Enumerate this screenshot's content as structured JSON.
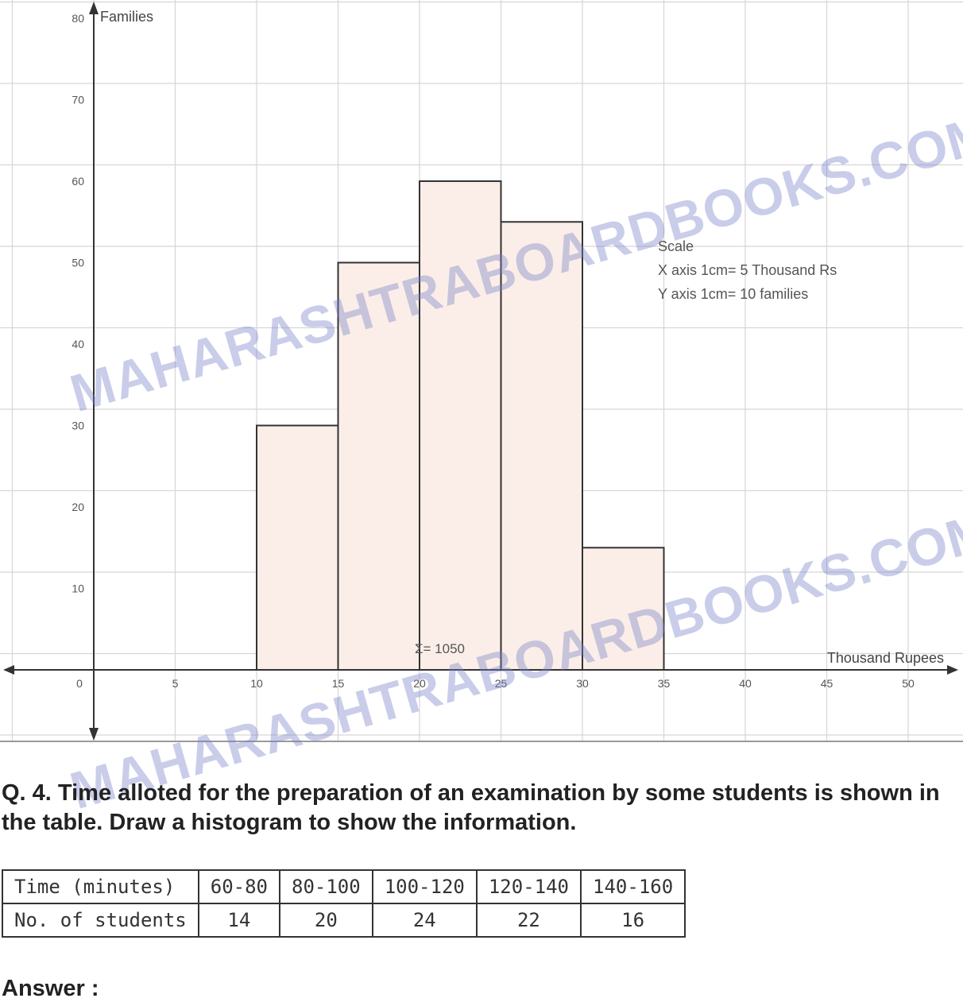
{
  "chart_data": {
    "type": "bar",
    "histogram": true,
    "ylabel": "Families",
    "xlabel": "Thousand Rupees",
    "xlim": [
      0,
      50
    ],
    "ylim": [
      0,
      80
    ],
    "x_ticks": [
      0,
      5,
      10,
      15,
      20,
      25,
      30,
      35,
      40,
      45,
      50
    ],
    "y_ticks": [
      10,
      20,
      30,
      40,
      50,
      60,
      70,
      80
    ],
    "bins": [
      [
        10,
        15
      ],
      [
        15,
        20
      ],
      [
        20,
        25
      ],
      [
        25,
        30
      ],
      [
        30,
        35
      ]
    ],
    "values": [
      30,
      50,
      60,
      55,
      15
    ],
    "grid": true,
    "annotations": [
      "Scale",
      "X axis 1cm= 5 Thousand Rs",
      "Y axis 1cm= 10 families"
    ],
    "label_point": "Σ= 1050",
    "bar_fill": "#fbeee8",
    "bar_stroke": "#333333"
  },
  "watermark": "MAHARASHTRABOARDBOOKS.COM",
  "question": {
    "text": "Q. 4. Time alloted for the preparation of an examination by some students is shown in the table. Draw a histogram to show the information."
  },
  "table": {
    "row1": [
      "Time (minutes)",
      "60-80",
      "80-100",
      "100-120",
      "120-140",
      "140-160"
    ],
    "row2": [
      "No. of students",
      "14",
      "20",
      "24",
      "22",
      "16"
    ]
  },
  "answer_label": "Answer :"
}
